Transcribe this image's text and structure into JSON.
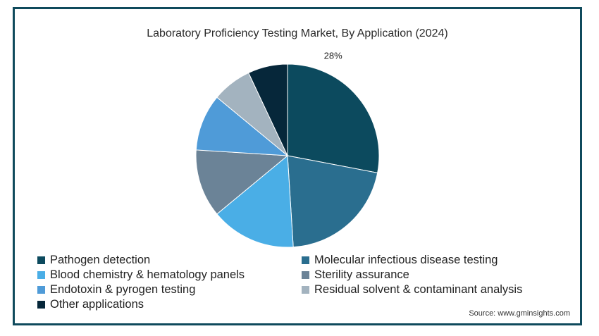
{
  "chart_data": {
    "type": "pie",
    "title": "Laboratory Proficiency Testing Market, By Application (2024)",
    "source": "Source: www.gminsights.com",
    "slices": [
      {
        "name": "Pathogen detection",
        "value": 28,
        "label": "28%",
        "color": "#0c4a5e"
      },
      {
        "name": "Molecular infectious disease testing",
        "value": 21,
        "color": "#2a6e8f"
      },
      {
        "name": "Blood chemistry & hematology panels",
        "value": 15,
        "color": "#4aaee6"
      },
      {
        "name": "Sterility assurance",
        "value": 12,
        "color": "#6b8397"
      },
      {
        "name": "Endotoxin & pyrogen testing",
        "value": 10,
        "color": "#4f9bd8"
      },
      {
        "name": "Residual solvent & contaminant analysis",
        "value": 7,
        "color": "#a3b3bf"
      },
      {
        "name": "Other applications",
        "value": 7,
        "color": "#06273a"
      }
    ],
    "legend_position": "bottom"
  }
}
